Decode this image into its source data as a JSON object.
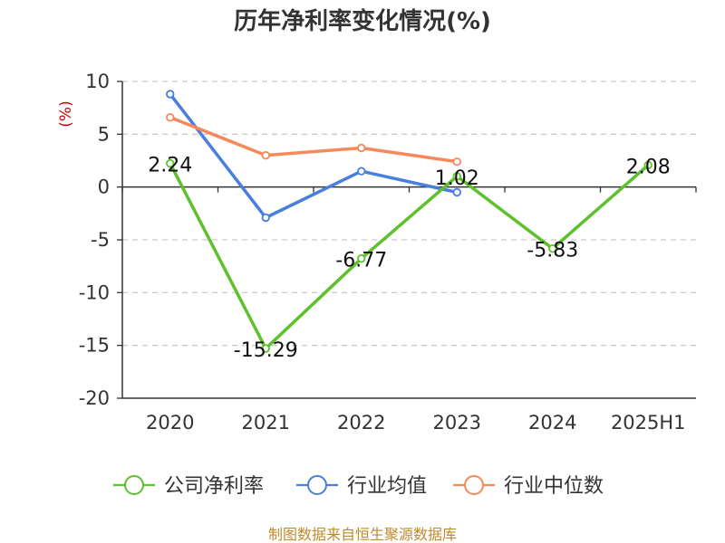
{
  "chart_data": {
    "type": "line",
    "title": "历年净利率变化情况(%)",
    "ylabel": "(%)",
    "xlabel": "",
    "categories": [
      "2020",
      "2021",
      "2022",
      "2023",
      "2024",
      "2025H1"
    ],
    "ylim": [
      -20,
      10
    ],
    "yticks": [
      10,
      5,
      0,
      -5,
      -10,
      -15,
      -20
    ],
    "grid": true,
    "legend_position": "bottom",
    "series": [
      {
        "name": "公司净利率",
        "color": "#5cc12a",
        "values": [
          2.24,
          -15.29,
          -6.77,
          1.02,
          -5.83,
          2.08
        ],
        "labels": [
          "2.24",
          "-15.29",
          "-6.77",
          "1.02",
          "-5.83",
          "2.08"
        ]
      },
      {
        "name": "行业均值",
        "color": "#4a7fe0",
        "values": [
          8.8,
          -2.9,
          1.5,
          -0.5,
          null,
          null
        ]
      },
      {
        "name": "行业中位数",
        "color": "#f5895a",
        "values": [
          6.6,
          3.0,
          3.7,
          2.4,
          null,
          null
        ]
      }
    ]
  },
  "source": "制图数据来自恒生聚源数据库"
}
